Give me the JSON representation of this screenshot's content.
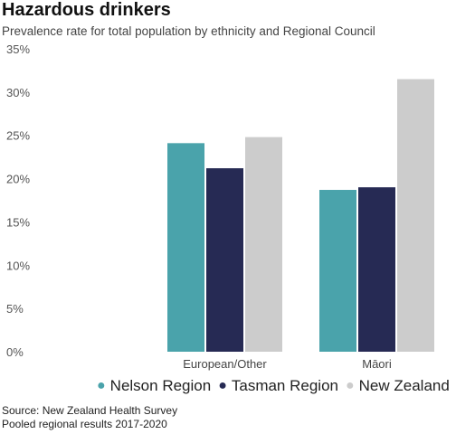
{
  "header": {
    "title": "Hazardous drinkers",
    "subtitle": "Prevalence rate for total population by ethnicity and Regional Council"
  },
  "chart_data": {
    "type": "bar",
    "title": "Hazardous drinkers",
    "subtitle": "Prevalence rate for total population by ethnicity and Regional Council",
    "categories": [
      "European/Other",
      "Māori"
    ],
    "series": [
      {
        "name": "Nelson Region",
        "values": [
          24.1,
          18.7
        ],
        "color": "#4aa3ab"
      },
      {
        "name": "Tasman Region",
        "values": [
          21.2,
          19.0
        ],
        "color": "#262a54"
      },
      {
        "name": "New Zealand",
        "values": [
          24.8,
          31.5
        ],
        "color": "#cccccc"
      }
    ],
    "ylim": [
      0,
      35
    ],
    "yticks": [
      "0%",
      "5%",
      "10%",
      "15%",
      "20%",
      "25%",
      "30%",
      "35%"
    ],
    "xlabel": "",
    "ylabel": "",
    "grid": false,
    "legend_position": "bottom"
  },
  "footer": {
    "source": "Source: New Zealand Health Survey",
    "note": "Pooled regional results 2017-2020"
  }
}
